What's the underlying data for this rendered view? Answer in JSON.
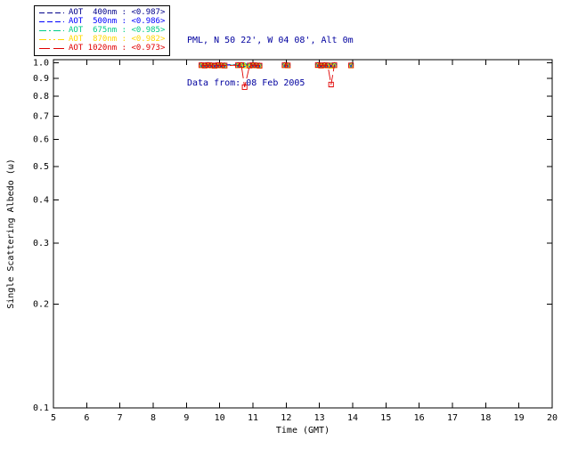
{
  "page": {
    "background": "#FFFFFF"
  },
  "header": {
    "station_line": "PML, N 50 22', W 04 08', Alt 0m",
    "data_line": "Data from: 08 Feb 2005",
    "text_color": "#00009F"
  },
  "chart_data": {
    "type": "line",
    "title": "",
    "xlabel": "Time (GMT)",
    "ylabel": "Single Scattering Albedo (ω)",
    "xlim": [
      5,
      20
    ],
    "ylim": [
      0.1,
      1.0
    ],
    "yscale": "log",
    "grid": false,
    "legend_position": "top-left",
    "xticks": [
      5,
      6,
      7,
      8,
      9,
      10,
      11,
      12,
      13,
      14,
      15,
      16,
      17,
      18,
      19,
      20
    ],
    "yticks": [
      1.0,
      0.9,
      0.8,
      0.7,
      0.6,
      0.5,
      0.4,
      0.3,
      0.2,
      0.1
    ],
    "ytick_labels": [
      "1.0",
      "0.9",
      "0.8",
      "0.7",
      "0.6",
      "0.5",
      "0.4",
      "0.3",
      "0.2",
      "0.1"
    ],
    "x": [
      9.45,
      9.55,
      9.65,
      9.75,
      9.85,
      9.95,
      10.05,
      10.15,
      10.55,
      10.65,
      10.75,
      10.9,
      11.0,
      11.1,
      11.2,
      11.95,
      12.05,
      12.95,
      13.05,
      13.15,
      13.25,
      13.35,
      13.45,
      13.95
    ],
    "series": [
      {
        "name": "AOT 400nm",
        "label": "AOT  400nm : <0.987>",
        "mean_label": "<0.987>",
        "color": "#00008B",
        "marker": "plus",
        "linestyle": "dash",
        "values": [
          0.988,
          0.986,
          0.989,
          0.987,
          0.985,
          0.988,
          0.987,
          0.986,
          0.988,
          0.989,
          0.987,
          0.986,
          0.988,
          0.987,
          0.985,
          0.988,
          0.987,
          0.989,
          0.986,
          0.988,
          0.987,
          0.985,
          0.988,
          0.987
        ]
      },
      {
        "name": "AOT 500nm",
        "label": "AOT  500nm : <0.986>",
        "mean_label": "<0.986>",
        "color": "#0000FF",
        "marker": "asterisk",
        "linestyle": "dash",
        "values": [
          0.987,
          0.985,
          0.988,
          0.986,
          0.984,
          0.987,
          0.986,
          0.985,
          0.987,
          0.988,
          0.986,
          0.985,
          0.987,
          0.986,
          0.984,
          0.987,
          0.986,
          0.988,
          0.985,
          0.987,
          0.986,
          0.984,
          0.987,
          0.986
        ]
      },
      {
        "name": "AOT 675nm",
        "label": "AOT  675nm : <0.985>",
        "mean_label": "<0.985>",
        "color": "#00CC88",
        "marker": "diamond",
        "linestyle": "dashdot",
        "values": [
          0.986,
          0.984,
          0.987,
          0.985,
          0.983,
          0.986,
          0.985,
          0.984,
          0.986,
          0.987,
          0.985,
          0.984,
          0.986,
          0.985,
          0.983,
          0.986,
          0.985,
          0.987,
          0.984,
          0.986,
          0.985,
          0.983,
          0.986,
          0.985
        ]
      },
      {
        "name": "AOT 870nm",
        "label": "AOT  870nm : <0.982>",
        "mean_label": "<0.982>",
        "color": "#FFD800",
        "marker": "triangle",
        "linestyle": "dashdotdot",
        "values": [
          0.983,
          0.981,
          0.984,
          0.982,
          0.98,
          0.983,
          0.982,
          0.981,
          0.983,
          0.984,
          0.982,
          0.981,
          0.983,
          0.982,
          0.98,
          0.983,
          0.982,
          0.984,
          0.981,
          0.983,
          0.982,
          0.98,
          0.983,
          0.982
        ]
      },
      {
        "name": "AOT 1020nm",
        "label": "AOT 1020nm : <0.973>",
        "mean_label": "<0.973>",
        "color": "#E00000",
        "marker": "square",
        "linestyle": "longdash",
        "values": [
          0.984,
          0.982,
          0.985,
          0.983,
          0.981,
          0.984,
          0.983,
          0.982,
          0.984,
          0.985,
          0.85,
          0.982,
          0.984,
          0.983,
          0.981,
          0.984,
          0.983,
          0.985,
          0.982,
          0.984,
          0.983,
          0.865,
          0.984,
          0.983
        ]
      }
    ]
  }
}
